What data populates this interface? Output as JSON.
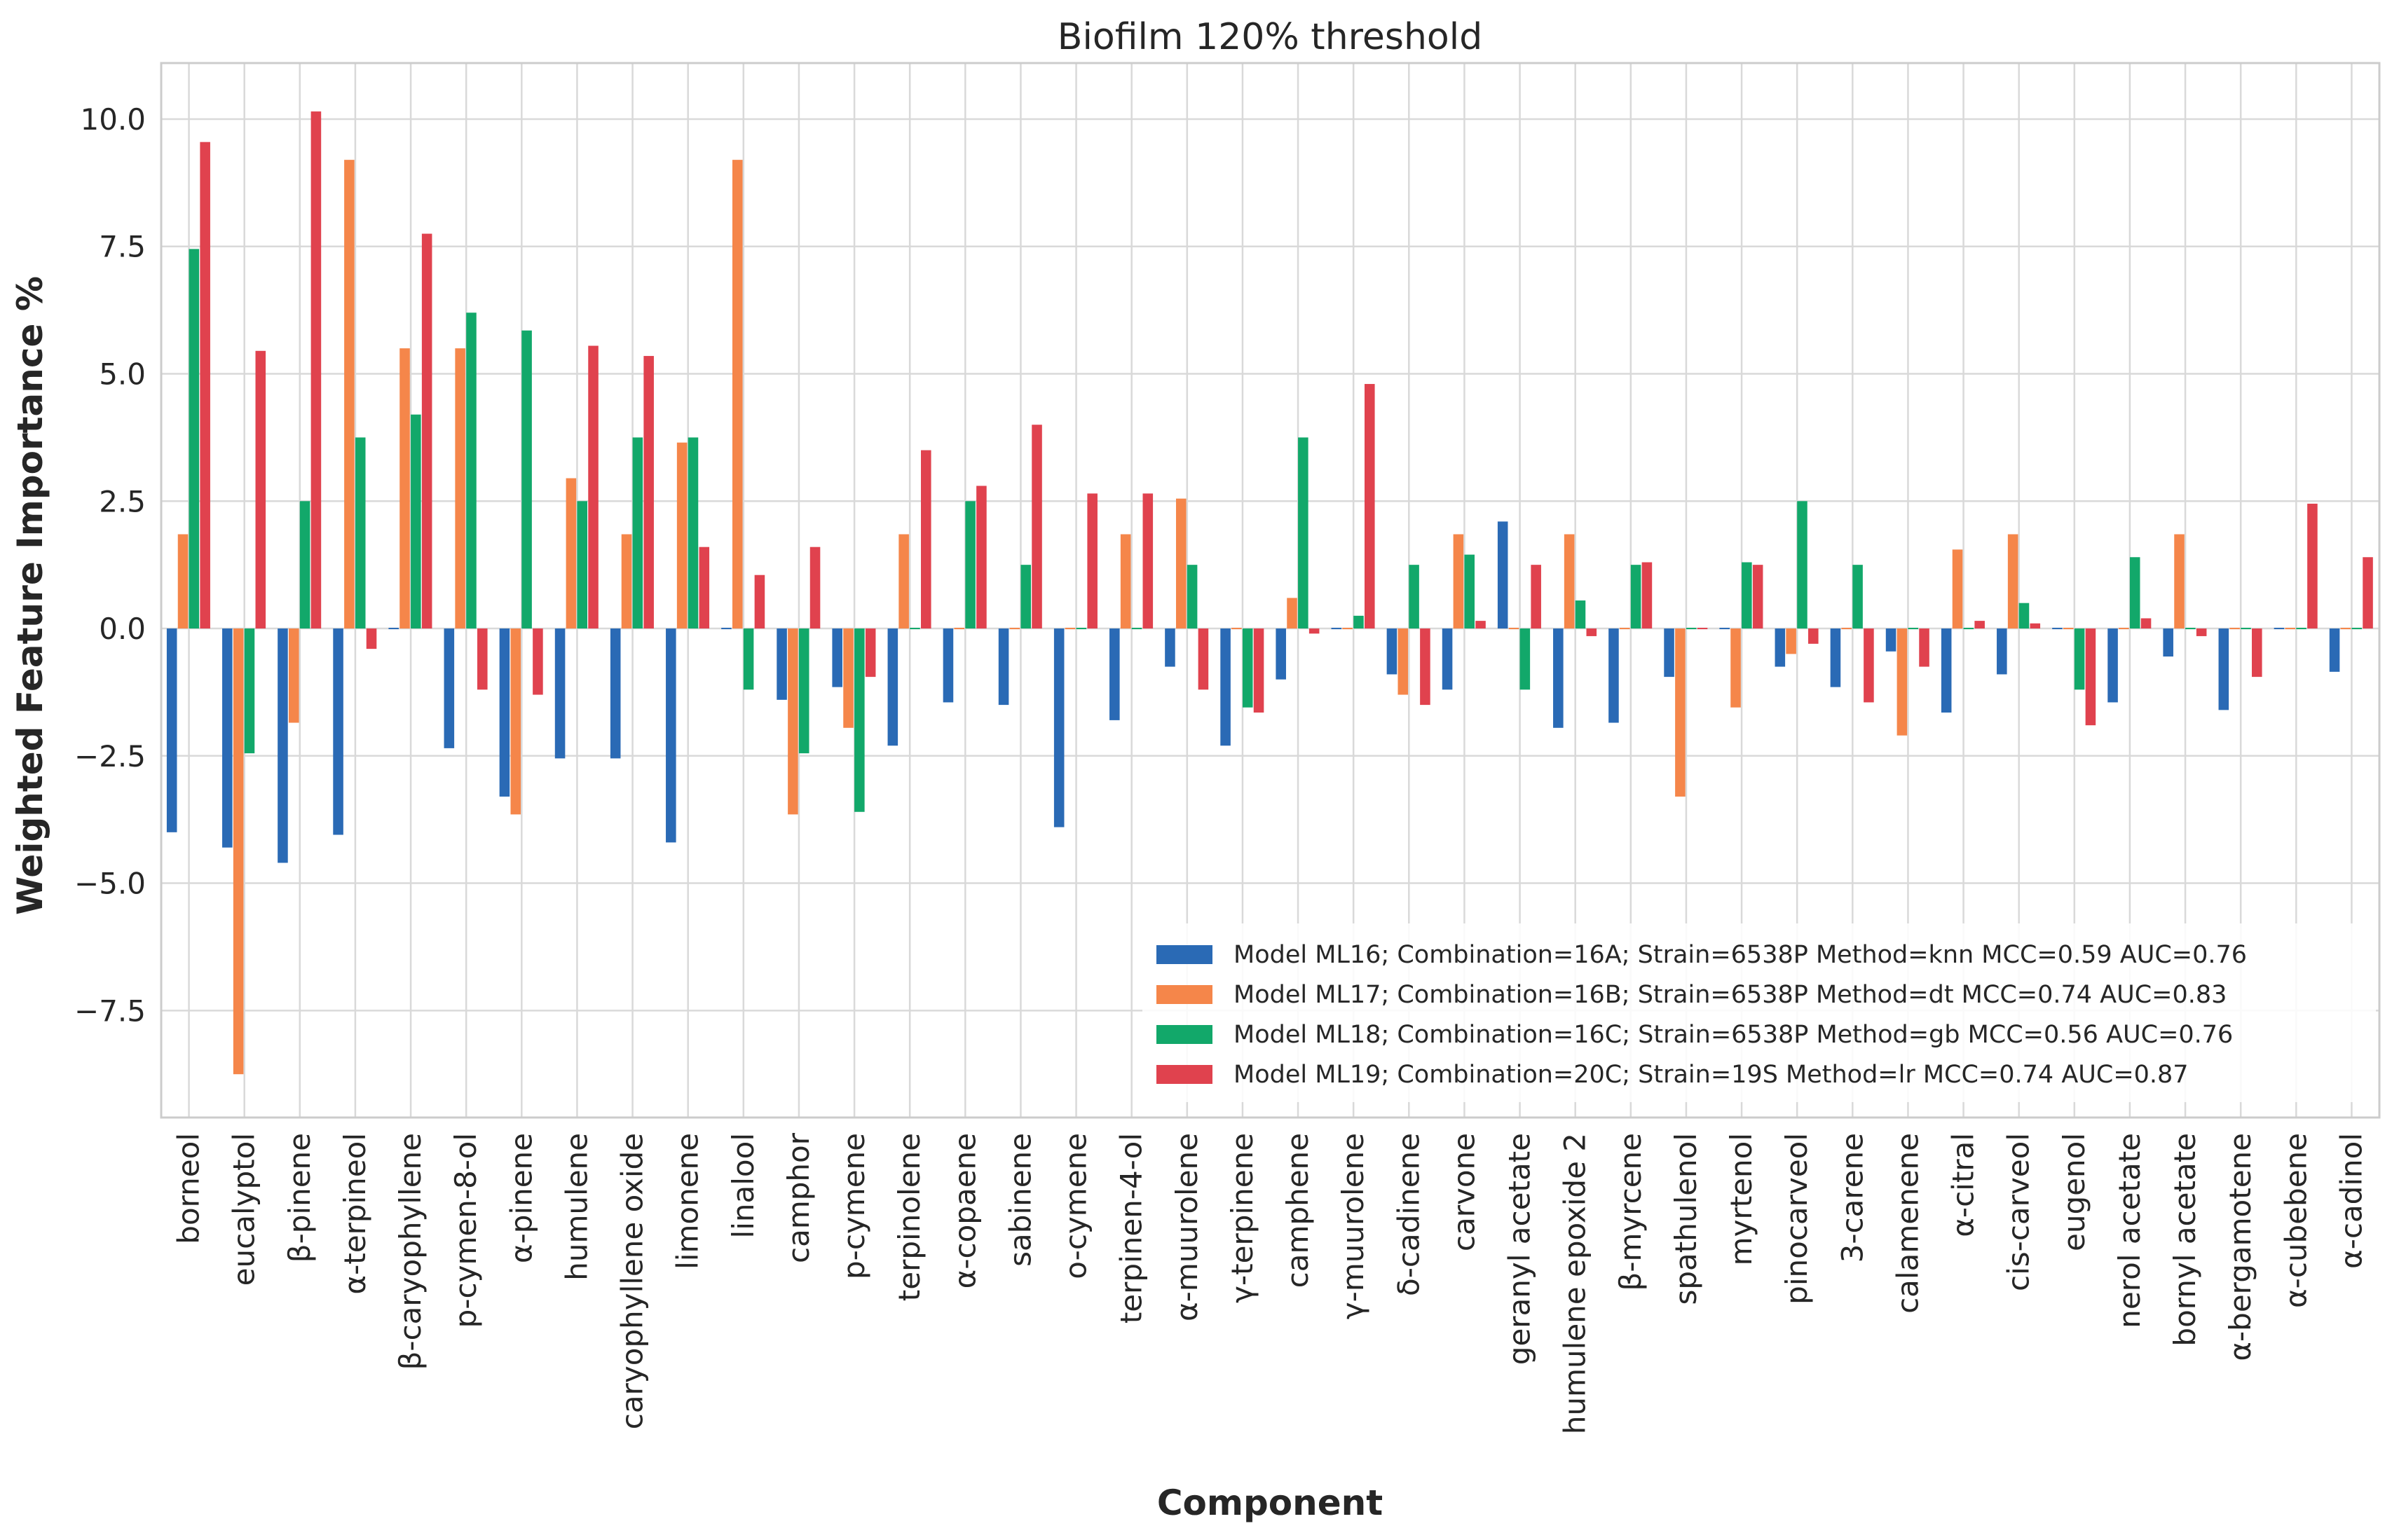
{
  "chart_data": {
    "type": "bar",
    "title": "Biofilm 120% threshold",
    "xlabel": "Component",
    "ylabel": "Weighted Feature Importance %",
    "ylim": [
      -9.6,
      11.1
    ],
    "yticks": [
      -7.5,
      -5.0,
      -2.5,
      0.0,
      2.5,
      5.0,
      7.5,
      10.0
    ],
    "ytick_labels": [
      "−7.5",
      "−5.0",
      "−2.5",
      "0.0",
      "2.5",
      "5.0",
      "7.5",
      "10.0"
    ],
    "grid": true,
    "legend_position": "lower-right",
    "categories": [
      "borneol",
      "eucalyptol",
      "β-pinene",
      "α-terpineol",
      "β-caryophyllene",
      "p-cymen-8-ol",
      "α-pinene",
      "humulene",
      "caryophyllene oxide",
      "limonene",
      "linalool",
      "camphor",
      "p-cymene",
      "terpinolene",
      "α-copaene",
      "sabinene",
      "o-cymene",
      "terpinen-4-ol",
      "α-muurolene",
      "γ-terpinene",
      "camphene",
      "γ-muurolene",
      "δ-cadinene",
      "carvone",
      "geranyl acetate",
      "humulene epoxide 2",
      "β-myrcene",
      "spathulenol",
      "myrtenol",
      "pinocarveol",
      "3-carene",
      "calamenene",
      "α-citral",
      "cis-carveol",
      "eugenol",
      "nerol acetate",
      "bornyl acetate",
      "α-bergamotene",
      "α-cubebene",
      "α-cadinol"
    ],
    "series": [
      {
        "name": "Model ML16; Combination=16A; Strain=6538P Method=knn MCC=0.59 AUC=0.76",
        "color": "#2a6ab5",
        "values": [
          -4.0,
          -4.3,
          -4.6,
          -4.05,
          0.0,
          -2.35,
          -3.3,
          -2.55,
          -2.55,
          -4.2,
          0.0,
          -1.4,
          -1.15,
          -2.3,
          -1.45,
          -1.5,
          -3.9,
          -1.8,
          -0.75,
          -2.3,
          -1.0,
          0.0,
          -0.9,
          -1.2,
          2.1,
          -1.95,
          -1.85,
          -0.95,
          0.0,
          -0.75,
          -1.15,
          -0.45,
          -1.65,
          -0.9,
          0.0,
          -1.45,
          -0.55,
          -1.6,
          0.0,
          -0.85
        ]
      },
      {
        "name": "Model ML17; Combination=16B; Strain=6538P Method=dt MCC=0.74 AUC=0.83",
        "color": "#f5864a",
        "values": [
          1.85,
          -8.75,
          -1.85,
          9.2,
          5.5,
          5.5,
          -3.65,
          2.95,
          1.85,
          3.65,
          9.2,
          -3.65,
          -1.95,
          1.85,
          0.0,
          0.0,
          0.0,
          1.85,
          2.55,
          0.0,
          0.6,
          0.0,
          -1.3,
          1.85,
          0.0,
          1.85,
          0.0,
          -3.3,
          -1.55,
          -0.5,
          0.0,
          -2.1,
          1.55,
          1.85,
          0.0,
          0.0,
          1.85,
          0.0,
          0.0,
          0.0
        ]
      },
      {
        "name": "Model ML18; Combination=16C; Strain=6538P Method=gb MCC=0.56 AUC=0.76",
        "color": "#12a86a",
        "values": [
          7.45,
          -2.45,
          2.5,
          3.75,
          4.2,
          6.2,
          5.85,
          2.5,
          3.75,
          3.75,
          -1.2,
          -2.45,
          -3.6,
          0.0,
          2.5,
          1.25,
          0.0,
          0.0,
          1.25,
          -1.55,
          3.75,
          0.25,
          1.25,
          1.45,
          -1.2,
          0.55,
          1.25,
          0.0,
          1.3,
          2.5,
          1.25,
          0.0,
          0.0,
          0.5,
          -1.2,
          1.4,
          0.0,
          0.0,
          0.0,
          0.0
        ]
      },
      {
        "name": "Model ML19; Combination=20C; Strain=19S Method=lr MCC=0.74 AUC=0.87",
        "color": "#e0424e",
        "values": [
          9.55,
          5.45,
          10.15,
          -0.4,
          7.75,
          -1.2,
          -1.3,
          5.55,
          5.35,
          1.6,
          1.05,
          1.6,
          -0.95,
          3.5,
          2.8,
          4.0,
          2.65,
          2.65,
          -1.2,
          -1.65,
          -0.1,
          4.8,
          -1.5,
          0.15,
          1.25,
          -0.15,
          1.3,
          0.0,
          1.25,
          -0.3,
          -1.45,
          -0.75,
          0.15,
          0.1,
          -1.9,
          0.2,
          -0.15,
          -0.95,
          2.45,
          1.4
        ]
      }
    ]
  }
}
